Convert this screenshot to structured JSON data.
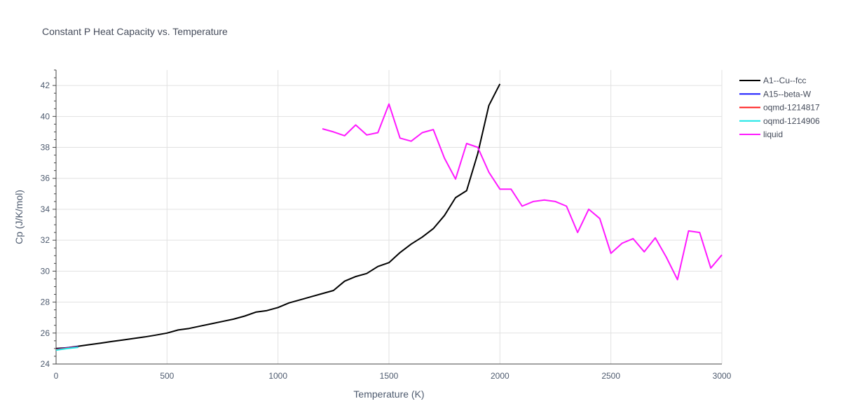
{
  "chart_data": {
    "type": "line",
    "title": "Constant P Heat Capacity vs. Temperature",
    "xlabel": "Temperature (K)",
    "ylabel": "Cp (J/K/mol)",
    "xlim": [
      0,
      3000
    ],
    "ylim": [
      24,
      43
    ],
    "x_ticks": [
      0,
      500,
      1000,
      1500,
      2000,
      2500,
      3000
    ],
    "x_tick_labels": [
      "0",
      "500",
      "1000",
      "1500",
      "2000",
      "2500",
      "3000"
    ],
    "y_ticks": [
      24,
      26,
      28,
      30,
      32,
      34,
      36,
      38,
      40,
      42
    ],
    "y_tick_labels": [
      "24",
      "26",
      "28",
      "30",
      "32",
      "34",
      "36",
      "38",
      "40",
      "42"
    ],
    "grid": true,
    "legend_position": "top-right outside",
    "series": [
      {
        "name": "A1--Cu--fcc",
        "color": "#000000",
        "x": [
          0,
          50,
          100,
          150,
          200,
          250,
          300,
          350,
          400,
          450,
          500,
          550,
          600,
          650,
          700,
          750,
          800,
          850,
          900,
          950,
          1000,
          1050,
          1100,
          1150,
          1200,
          1250,
          1300,
          1350,
          1400,
          1450,
          1500,
          1550,
          1600,
          1650,
          1700,
          1750,
          1800,
          1850,
          1900,
          1950,
          2000
        ],
        "y": [
          25.0,
          25.05,
          25.15,
          25.25,
          25.35,
          25.45,
          25.55,
          25.65,
          25.75,
          25.87,
          26.0,
          26.2,
          26.3,
          26.45,
          26.6,
          26.75,
          26.9,
          27.1,
          27.35,
          27.45,
          27.65,
          27.95,
          28.15,
          28.35,
          28.55,
          28.75,
          29.35,
          29.65,
          29.85,
          30.3,
          30.55,
          31.2,
          31.75,
          32.2,
          32.75,
          33.6,
          34.75,
          35.2,
          37.6,
          40.7,
          42.1
        ]
      },
      {
        "name": "A15--beta-W",
        "color": "#1a1aff",
        "x": [
          0,
          50,
          100
        ],
        "y": [
          24.95,
          25.05,
          25.12
        ]
      },
      {
        "name": "oqmd-1214817",
        "color": "#ff1a1a",
        "x": [
          0,
          50,
          100
        ],
        "y": [
          24.93,
          25.03,
          25.1
        ]
      },
      {
        "name": "oqmd-1214906",
        "color": "#19e6e6",
        "x": [
          0,
          50,
          100
        ],
        "y": [
          24.9,
          25.0,
          25.08
        ]
      },
      {
        "name": "liquid",
        "color": "#ff19ff",
        "x": [
          1200,
          1250,
          1300,
          1350,
          1400,
          1450,
          1500,
          1550,
          1600,
          1650,
          1700,
          1750,
          1800,
          1850,
          1900,
          1950,
          2000,
          2050,
          2100,
          2150,
          2200,
          2250,
          2300,
          2350,
          2400,
          2450,
          2500,
          2550,
          2600,
          2650,
          2700,
          2750,
          2800,
          2850,
          2900,
          2950,
          3000
        ],
        "y": [
          39.2,
          39.0,
          38.75,
          39.45,
          38.8,
          38.95,
          40.8,
          38.6,
          38.4,
          38.95,
          39.15,
          37.3,
          35.95,
          38.25,
          38.0,
          36.4,
          35.3,
          35.3,
          34.2,
          34.5,
          34.6,
          34.5,
          34.2,
          32.5,
          34.0,
          33.4,
          31.15,
          31.8,
          32.1,
          31.25,
          32.15,
          30.9,
          29.45,
          32.6,
          32.5,
          30.2,
          31.05
        ]
      }
    ]
  }
}
